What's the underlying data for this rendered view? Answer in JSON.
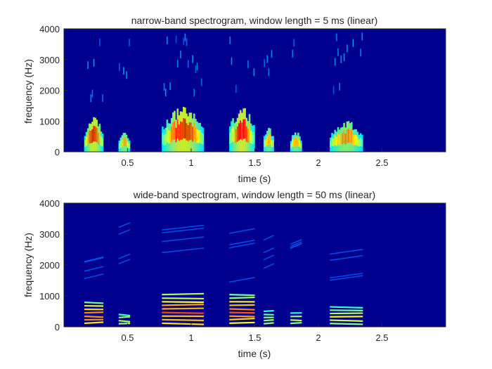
{
  "chart_data": [
    {
      "type": "heatmap",
      "title": "narrow-band spectrogram, window length = 5 ms (linear)",
      "xlabel": "time (s)",
      "ylabel": "frequency (Hz)",
      "xlim": [
        0,
        3.0
      ],
      "ylim": [
        0,
        4000
      ],
      "x_ticks": [
        "0.5",
        "1",
        "1.5",
        "2",
        "2.5"
      ],
      "y_ticks": [
        "0",
        "1000",
        "2000",
        "3000",
        "4000"
      ],
      "colormap": "jet",
      "background_color": "#00008f",
      "segments": [
        {
          "start": 0.16,
          "end": 0.31,
          "max_freq": 1000,
          "intensity": 0.9
        },
        {
          "start": 0.43,
          "end": 0.52,
          "max_freq": 600,
          "intensity": 0.6
        },
        {
          "start": 0.77,
          "end": 1.1,
          "max_freq": 1300,
          "intensity": 0.95
        },
        {
          "start": 1.3,
          "end": 1.5,
          "max_freq": 1300,
          "intensity": 0.95
        },
        {
          "start": 1.57,
          "end": 1.65,
          "max_freq": 700,
          "intensity": 0.5
        },
        {
          "start": 1.78,
          "end": 1.87,
          "max_freq": 600,
          "intensity": 0.55
        },
        {
          "start": 2.09,
          "end": 2.35,
          "max_freq": 900,
          "intensity": 0.65
        }
      ]
    },
    {
      "type": "heatmap",
      "title": "wide-band spectrogram, window length = 50 ms (linear)",
      "xlabel": "time (s)",
      "ylabel": "frequency (Hz)",
      "xlim": [
        0,
        3.0
      ],
      "ylim": [
        0,
        4000
      ],
      "x_ticks": [
        "0.5",
        "1",
        "1.5",
        "2",
        "2.5"
      ],
      "y_ticks": [
        "0",
        "1000",
        "2000",
        "3000",
        "4000"
      ],
      "colormap": "jet",
      "background_color": "#00008f",
      "segments": [
        {
          "start": 0.16,
          "end": 0.31,
          "max_freq": 850,
          "intensity": 0.9
        },
        {
          "start": 0.43,
          "end": 0.52,
          "max_freq": 450,
          "intensity": 0.55
        },
        {
          "start": 0.77,
          "end": 1.1,
          "max_freq": 1100,
          "intensity": 0.9
        },
        {
          "start": 1.3,
          "end": 1.5,
          "max_freq": 1100,
          "intensity": 0.85
        },
        {
          "start": 1.57,
          "end": 1.65,
          "max_freq": 550,
          "intensity": 0.5
        },
        {
          "start": 1.78,
          "end": 1.87,
          "max_freq": 500,
          "intensity": 0.5
        },
        {
          "start": 2.09,
          "end": 2.35,
          "max_freq": 700,
          "intensity": 0.6
        }
      ]
    }
  ]
}
